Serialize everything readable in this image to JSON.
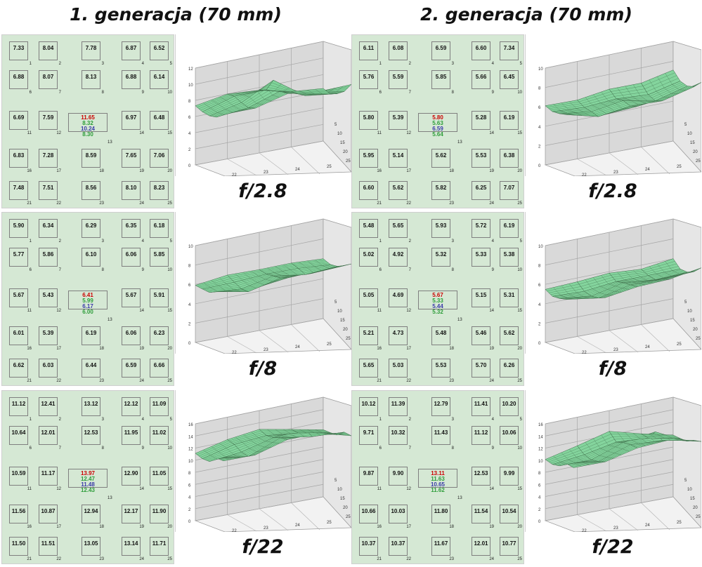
{
  "columns": [
    {
      "title": "1. generacja (70 mm)",
      "rows": [
        {
          "aperture": "f/2.8",
          "cells": [
            "7.33",
            "8.04",
            "7.78",
            "6.87",
            "6.52",
            "6.88",
            "8.07",
            "8.13",
            "6.88",
            "6.14",
            "6.69",
            "7.59",
            "",
            "6.97",
            "6.48",
            "6.83",
            "7.28",
            "8.59",
            "7.65",
            "7.06",
            "7.48",
            "7.51",
            "8.56",
            "8.10",
            "8.23"
          ],
          "center": [
            "11.65",
            "8.32",
            "10.24",
            "8.30"
          ],
          "zticks": [
            "12",
            "10",
            "8",
            "6",
            "4",
            "2",
            "0"
          ]
        },
        {
          "aperture": "f/8",
          "cells": [
            "5.90",
            "6.34",
            "6.29",
            "6.35",
            "6.18",
            "5.77",
            "5.86",
            "6.10",
            "6.06",
            "5.85",
            "5.67",
            "5.43",
            "",
            "5.67",
            "5.91",
            "6.01",
            "5.39",
            "6.19",
            "6.06",
            "6.23",
            "6.62",
            "6.03",
            "6.44",
            "6.59",
            "6.66"
          ],
          "center": [
            "6.41",
            "5.99",
            "6.17",
            "6.00"
          ],
          "zticks": [
            "10",
            "8",
            "6",
            "4",
            "2",
            "0"
          ]
        },
        {
          "aperture": "f/22",
          "cells": [
            "11.12",
            "12.41",
            "13.12",
            "12.12",
            "11.09",
            "10.64",
            "12.01",
            "12.53",
            "11.95",
            "11.02",
            "10.59",
            "11.17",
            "",
            "12.90",
            "11.05",
            "11.56",
            "10.87",
            "12.94",
            "12.17",
            "11.90",
            "11.50",
            "11.51",
            "13.05",
            "13.14",
            "11.71"
          ],
          "center": [
            "13.97",
            "12.47",
            "11.48",
            "12.43"
          ],
          "zticks": [
            "16",
            "14",
            "12",
            "10",
            "8",
            "6",
            "4",
            "2",
            "0"
          ]
        }
      ]
    },
    {
      "title": "2. generacja (70 mm)",
      "rows": [
        {
          "aperture": "f/2.8",
          "cells": [
            "6.11",
            "6.08",
            "6.59",
            "6.60",
            "7.34",
            "5.76",
            "5.59",
            "5.85",
            "5.66",
            "6.45",
            "5.80",
            "5.39",
            "",
            "5.28",
            "6.19",
            "5.95",
            "5.14",
            "5.62",
            "5.53",
            "6.38",
            "6.60",
            "5.62",
            "5.82",
            "6.25",
            "7.07"
          ],
          "center": [
            "5.80",
            "5.63",
            "6.59",
            "5.64"
          ],
          "zticks": [
            "10",
            "8",
            "6",
            "4",
            "2",
            "0"
          ]
        },
        {
          "aperture": "f/8",
          "cells": [
            "5.48",
            "5.65",
            "5.93",
            "5.72",
            "6.19",
            "5.02",
            "4.92",
            "5.32",
            "5.33",
            "5.38",
            "5.05",
            "4.69",
            "",
            "5.15",
            "5.31",
            "5.21",
            "4.73",
            "5.48",
            "5.46",
            "5.62",
            "5.65",
            "5.03",
            "5.53",
            "5.70",
            "6.26"
          ],
          "center": [
            "5.67",
            "5.33",
            "5.44",
            "5.32"
          ],
          "zticks": [
            "10",
            "8",
            "6",
            "4",
            "2",
            "0"
          ]
        },
        {
          "aperture": "f/22",
          "cells": [
            "10.12",
            "11.39",
            "12.79",
            "11.41",
            "10.20",
            "9.71",
            "10.32",
            "11.43",
            "11.12",
            "10.06",
            "9.87",
            "9.90",
            "",
            "12.53",
            "9.99",
            "10.66",
            "10.03",
            "11.80",
            "11.54",
            "10.54",
            "10.37",
            "10.37",
            "11.67",
            "12.01",
            "10.77"
          ],
          "center": [
            "13.11",
            "11.63",
            "10.65",
            "11.62"
          ],
          "zticks": [
            "16",
            "14",
            "12",
            "10",
            "8",
            "6",
            "4",
            "2",
            "0"
          ]
        }
      ]
    }
  ],
  "cell_indices": [
    "1",
    "2",
    "3",
    "4",
    "5",
    "6",
    "7",
    "8",
    "9",
    "10",
    "11",
    "12",
    "13",
    "14",
    "15",
    "16",
    "17",
    "18",
    "19",
    "20",
    "21",
    "22",
    "23",
    "24",
    "25"
  ],
  "axis_x_ticks": [
    "22",
    "23",
    "24",
    "25"
  ],
  "axis_y_ticks": [
    "5",
    "10",
    "15",
    "20",
    "25"
  ],
  "colors": {
    "panel_bg": "#d5e8d4",
    "surface": "#7fd49a",
    "center_red": "#cc0000",
    "center_green": "#2e9d3a",
    "center_blue": "#3a3aa8",
    "plot_wall": "#d9d9d9"
  }
}
